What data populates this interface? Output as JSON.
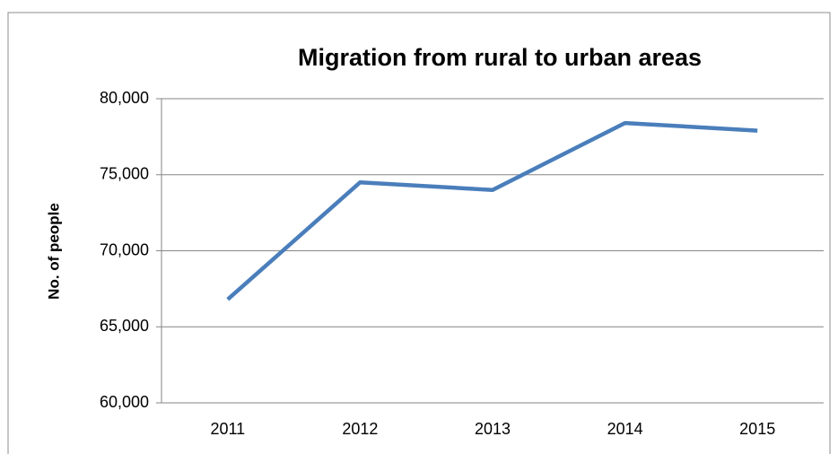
{
  "chart_data": {
    "type": "line",
    "title": "Migration from rural to urban areas",
    "y_label": "No. of people",
    "categories": [
      "2011",
      "2012",
      "2013",
      "2014",
      "2015"
    ],
    "series": [
      {
        "name": "No. of people",
        "color": "#4a7ebb",
        "values": [
          66800,
          74500,
          74000,
          78400,
          77900
        ]
      }
    ],
    "ylim": [
      60000,
      80000
    ],
    "yticks": [
      {
        "value": 60000,
        "label": "60,000"
      },
      {
        "value": 65000,
        "label": "65,000"
      },
      {
        "value": 70000,
        "label": "70,000"
      },
      {
        "value": 75000,
        "label": "75,000"
      },
      {
        "value": 80000,
        "label": "80,000"
      }
    ],
    "grid": true
  }
}
